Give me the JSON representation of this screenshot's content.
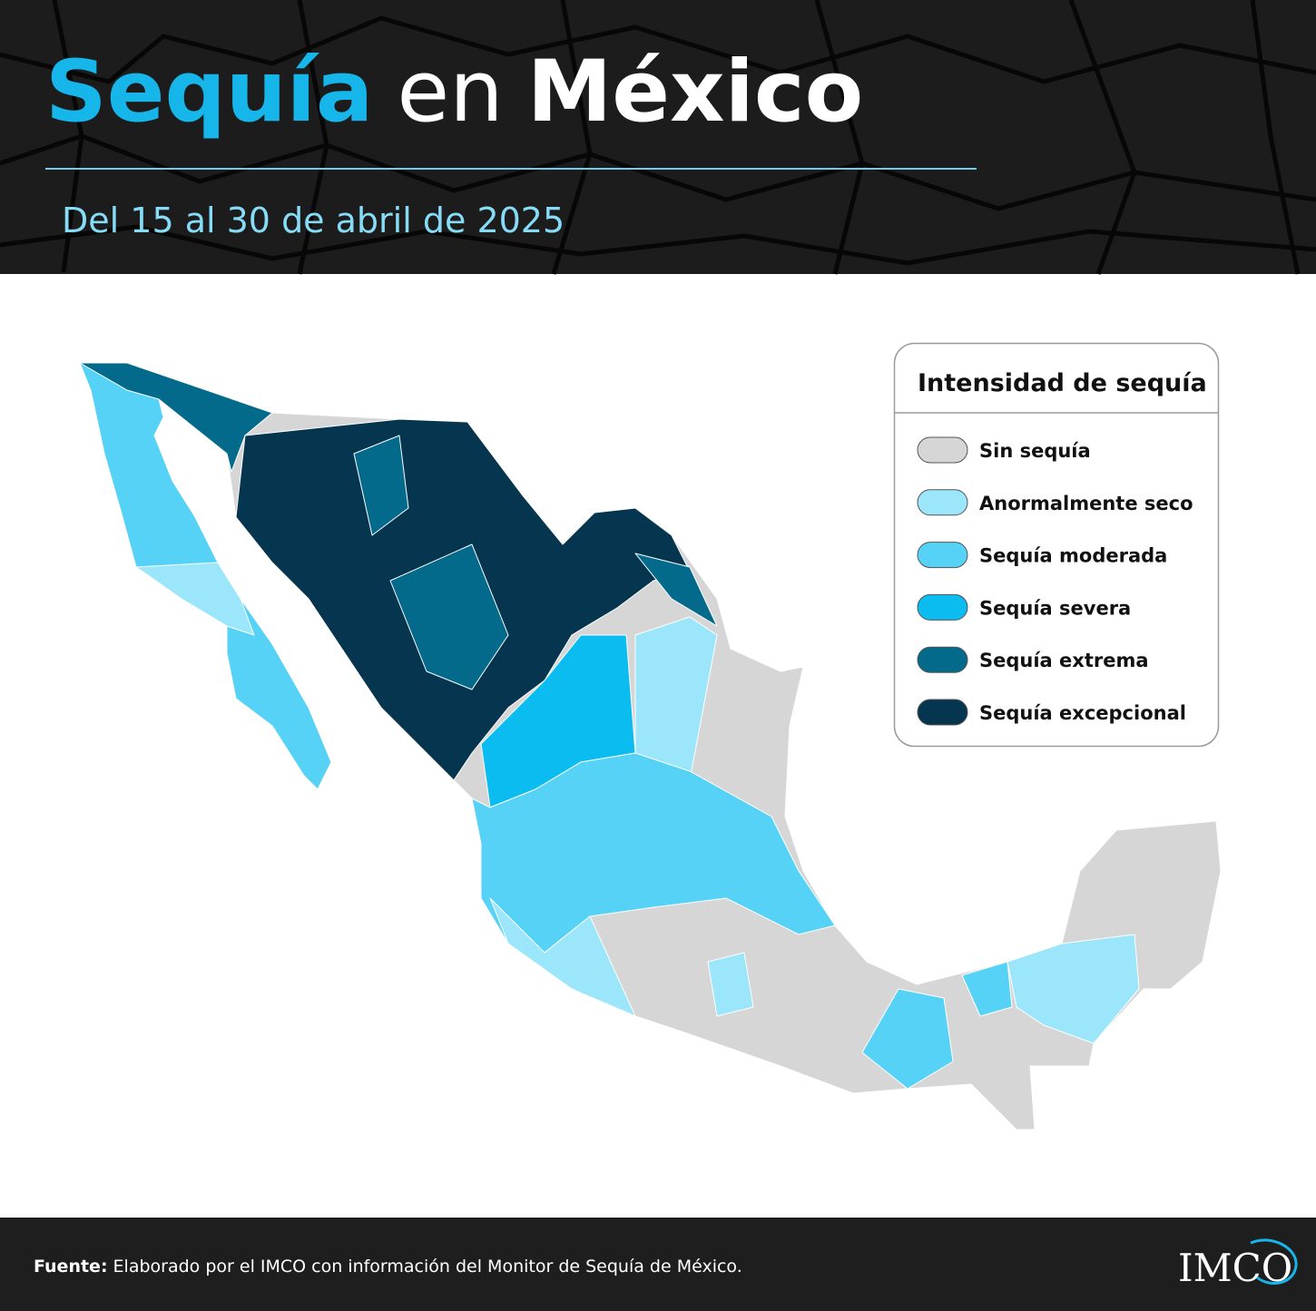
{
  "header": {
    "title": {
      "highlight": "Sequía",
      "connector": "en",
      "country": "México"
    },
    "subtitle": "Del 15 al 30 de abril de 2025"
  },
  "legend": {
    "title": "Intensidad de sequía",
    "items": [
      {
        "label": "Sin sequía",
        "color": "#d6d6d6"
      },
      {
        "label": "Anormalmente seco",
        "color": "#9be6fb"
      },
      {
        "label": "Sequía moderada",
        "color": "#55d2f5"
      },
      {
        "label": "Sequía severa",
        "color": "#0bbcf0"
      },
      {
        "label": "Sequía extrema",
        "color": "#046a8c"
      },
      {
        "label": "Sequía excepcional",
        "color": "#06364f"
      }
    ]
  },
  "footer": {
    "source_label": "Fuente:",
    "source_text": "Elaborado por el IMCO con información del Monitor de Sequía de México.",
    "logo": "IMCO"
  }
}
